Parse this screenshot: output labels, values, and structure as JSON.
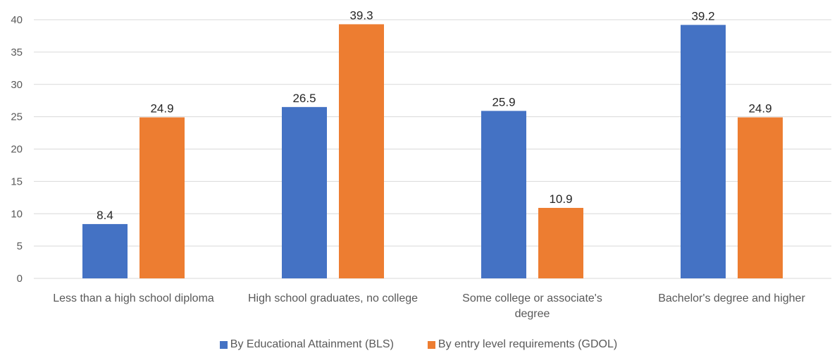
{
  "chart_data": {
    "type": "bar",
    "categories": [
      [
        "Less than a high school diploma"
      ],
      [
        "High school graduates, no college"
      ],
      [
        "Some college or associate's",
        "degree"
      ],
      [
        "Bachelor's degree and higher"
      ]
    ],
    "series": [
      {
        "name": "By Educational Attainment (BLS)",
        "color": "#4472C4",
        "values": [
          8.4,
          26.5,
          25.9,
          39.2
        ]
      },
      {
        "name": "By entry level requirements (GDOL)",
        "color": "#ED7D31",
        "values": [
          24.9,
          39.3,
          10.9,
          24.9
        ]
      }
    ],
    "ylim": [
      0,
      40
    ],
    "yticks": [
      0,
      5,
      10,
      15,
      20,
      25,
      30,
      35,
      40
    ],
    "grid": true,
    "legend_position": "bottom",
    "title": "",
    "xlabel": "",
    "ylabel": ""
  }
}
